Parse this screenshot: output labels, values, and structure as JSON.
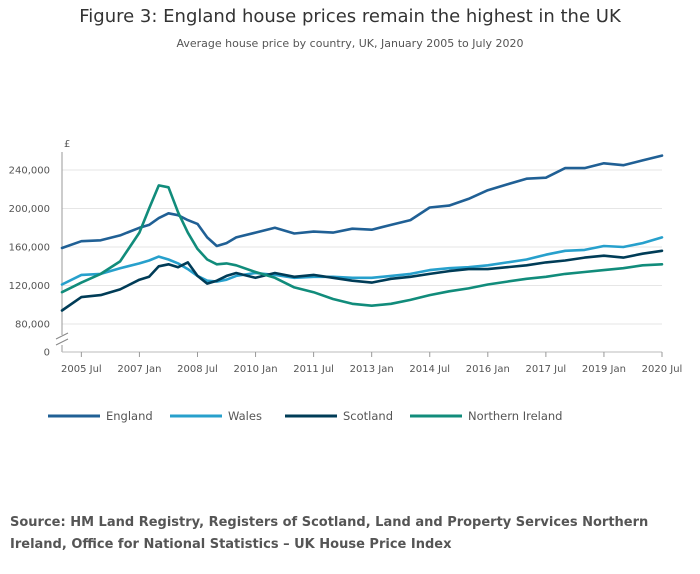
{
  "title": "Figure 3: England house prices remain the highest in the UK",
  "subtitle": "Average house price by country, UK, January 2005 to July 2020",
  "source": "Source: HM Land Registry, Registers of Scotland, Land and Property Services Northern Ireland, Office for National Statistics – UK House Price Index",
  "chart_data": {
    "type": "line",
    "title": "Figure 3: England house prices remain the highest in the UK",
    "subtitle": "Average house price by country, UK, January 2005 to July 2020",
    "xlabel": "",
    "ylabel": "£",
    "ylim": [
      0,
      260000
    ],
    "y_axis_break": "between 0 and 80,000",
    "y_ticks": [
      {
        "value": 0,
        "label": "0"
      },
      {
        "value": 80000,
        "label": "80,000"
      },
      {
        "value": 120000,
        "label": "120,000"
      },
      {
        "value": 160000,
        "label": "160,000"
      },
      {
        "value": 200000,
        "label": "200,000"
      },
      {
        "value": 240000,
        "label": "240,000"
      }
    ],
    "x_ticks": [
      {
        "value": 2005.5,
        "label": "2005 Jul"
      },
      {
        "value": 2007.0,
        "label": "2007 Jan"
      },
      {
        "value": 2008.5,
        "label": "2008 Jul"
      },
      {
        "value": 2010.0,
        "label": "2010 Jan"
      },
      {
        "value": 2011.5,
        "label": "2011 Jul"
      },
      {
        "value": 2013.0,
        "label": "2013 Jan"
      },
      {
        "value": 2014.5,
        "label": "2014 Jul"
      },
      {
        "value": 2016.0,
        "label": "2016 Jan"
      },
      {
        "value": 2017.5,
        "label": "2017 Jul"
      },
      {
        "value": 2019.0,
        "label": "2019 Jan"
      },
      {
        "value": 2020.5,
        "label": "2020 Jul"
      }
    ],
    "xlim": [
      2005.0,
      2020.5
    ],
    "legend_position": "bottom",
    "x": [
      2005.0,
      2005.5,
      2006.0,
      2006.5,
      2007.0,
      2007.25,
      2007.5,
      2007.75,
      2008.0,
      2008.25,
      2008.5,
      2008.75,
      2009.0,
      2009.25,
      2009.5,
      2010.0,
      2010.5,
      2011.0,
      2011.5,
      2012.0,
      2012.5,
      2013.0,
      2013.5,
      2014.0,
      2014.5,
      2015.0,
      2015.5,
      2016.0,
      2016.5,
      2017.0,
      2017.5,
      2018.0,
      2018.5,
      2019.0,
      2019.5,
      2020.0,
      2020.5
    ],
    "series": [
      {
        "name": "England",
        "color": "#206095",
        "values": [
          159000,
          166000,
          167000,
          172000,
          180000,
          183000,
          190000,
          195000,
          193000,
          188000,
          184000,
          170000,
          161000,
          164000,
          170000,
          175000,
          180000,
          174000,
          176000,
          175000,
          179000,
          178000,
          183000,
          188000,
          201000,
          203000,
          210000,
          219000,
          225000,
          231000,
          232000,
          242000,
          242000,
          247000,
          245000,
          250000,
          255000
        ]
      },
      {
        "name": "Wales",
        "color": "#27a0cc",
        "values": [
          121000,
          131000,
          132000,
          138000,
          143000,
          146000,
          150000,
          147000,
          143000,
          137000,
          130000,
          125000,
          124000,
          126000,
          130000,
          133000,
          131000,
          128000,
          129000,
          129000,
          128000,
          128000,
          130000,
          132000,
          136000,
          138000,
          139000,
          141000,
          144000,
          147000,
          152000,
          156000,
          157000,
          161000,
          160000,
          164000,
          170000
        ]
      },
      {
        "name": "Scotland",
        "color": "#003c57",
        "values": [
          94000,
          108000,
          110000,
          116000,
          126000,
          129000,
          140000,
          142000,
          139000,
          144000,
          130000,
          122000,
          125000,
          130000,
          133000,
          128000,
          133000,
          129000,
          131000,
          128000,
          125000,
          123000,
          127000,
          129000,
          132000,
          135000,
          137000,
          137000,
          139000,
          141000,
          144000,
          146000,
          149000,
          151000,
          149000,
          153000,
          156000
        ]
      },
      {
        "name": "Northern Ireland",
        "color": "#118c7b",
        "values": [
          113000,
          123000,
          132000,
          145000,
          175000,
          200000,
          224000,
          222000,
          196000,
          175000,
          158000,
          147000,
          142000,
          143000,
          141000,
          134000,
          128000,
          118000,
          113000,
          106000,
          101000,
          99000,
          101000,
          105000,
          110000,
          114000,
          117000,
          121000,
          124000,
          127000,
          129000,
          132000,
          134000,
          136000,
          138000,
          141000,
          142000
        ]
      }
    ]
  }
}
